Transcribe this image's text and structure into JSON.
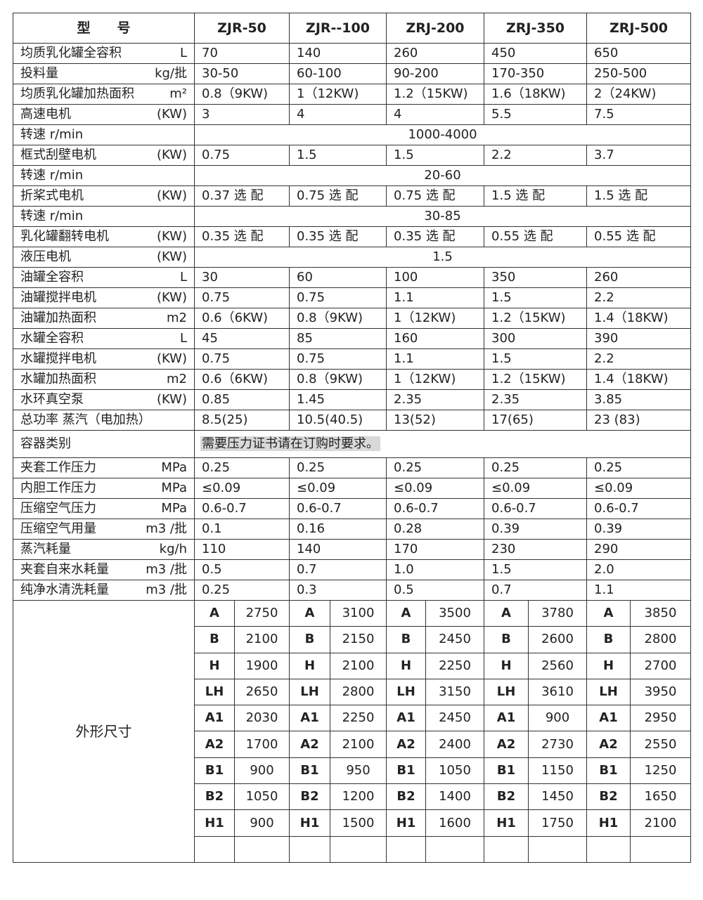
{
  "header": {
    "label": "型　　号",
    "models": [
      "ZJR-50",
      "ZJR--100",
      "ZRJ-200",
      "ZRJ-350",
      "ZRJ-500"
    ]
  },
  "rows": [
    {
      "label": "均质乳化罐全容积",
      "unit": "L",
      "values": [
        "70",
        "140",
        "260",
        "450",
        "650"
      ]
    },
    {
      "label": "投料量",
      "unit": "kg/批",
      "values": [
        "30-50",
        "60-100",
        "90-200",
        "170-350",
        "250-500"
      ]
    },
    {
      "label": "均质乳化罐加热面积",
      "unit": "m²",
      "values": [
        "0.8（9KW)",
        "1（12KW)",
        "1.2（15KW)",
        "1.6（18KW)",
        "2（24KW)"
      ]
    },
    {
      "label": "高速电机",
      "unit": "(KW)",
      "values": [
        "3",
        "4",
        "4",
        "5.5",
        "7.5"
      ]
    },
    {
      "label": "转速 r/min",
      "unit": "",
      "span": "1000-4000"
    },
    {
      "label": "框式刮壁电机",
      "unit": "(KW)",
      "values": [
        "0.75",
        "1.5",
        "1.5",
        "2.2",
        "3.7"
      ]
    },
    {
      "label": "转速 r/min",
      "unit": "",
      "span": "20-60"
    },
    {
      "label": "折桨式电机",
      "unit": "(KW)",
      "values": [
        "0.37 选 配",
        "0.75 选 配",
        "0.75 选 配",
        "1.5 选 配",
        "1.5 选 配"
      ]
    },
    {
      "label": "转速 r/min",
      "unit": "",
      "span": "30-85"
    },
    {
      "label": "乳化罐翻转电机",
      "unit": "(KW)",
      "values": [
        "0.35 选 配",
        "0.35 选 配",
        "0.35 选 配",
        "0.55 选 配",
        "0.55 选 配"
      ]
    },
    {
      "label": "液压电机",
      "unit": "(KW)",
      "span": "1.5"
    },
    {
      "label": "油罐全容积",
      "unit": "L",
      "values": [
        "30",
        "60",
        "100",
        "350",
        "260"
      ]
    },
    {
      "label": "油罐搅拌电机",
      "unit": "(KW)",
      "values": [
        "0.75",
        "0.75",
        "1.1",
        "1.5",
        "2.2"
      ]
    },
    {
      "label": "油罐加热面积",
      "unit": "m2",
      "values": [
        "0.6（6KW)",
        "0.8（9KW)",
        "1（12KW)",
        "1.2（15KW)",
        "1.4（18KW)"
      ]
    },
    {
      "label": "水罐全容积",
      "unit": "L",
      "values": [
        "45",
        "85",
        "160",
        "300",
        "390"
      ]
    },
    {
      "label": "水罐搅拌电机",
      "unit": "(KW)",
      "values": [
        "0.75",
        "0.75",
        "1.1",
        "1.5",
        "2.2"
      ]
    },
    {
      "label": "水罐加热面积",
      "unit": "m2",
      "values": [
        "0.6（6KW)",
        "0.8（9KW)",
        "1（12KW)",
        "1.2（15KW)",
        "1.4（18KW)"
      ]
    },
    {
      "label": "水环真空泵",
      "unit": "(KW)",
      "values": [
        "0.85",
        "1.45",
        "2.35",
        "2.35",
        "3.85"
      ]
    },
    {
      "label": "总功率 蒸汽（电加热）",
      "unit": "",
      "values": [
        "8.5(25)",
        "10.5(40.5)",
        "13(52)",
        "17(65)",
        "23 (83)"
      ]
    },
    {
      "label": "容器类别",
      "unit": "",
      "note": "需要压力证书请在订购时要求。"
    },
    {
      "label": "夹套工作压力",
      "unit": "MPa",
      "values": [
        "0.25",
        "0.25",
        "0.25",
        "0.25",
        "0.25"
      ]
    },
    {
      "label": "内胆工作压力",
      "unit": "MPa",
      "values": [
        "≤0.09",
        "≤0.09",
        "≤0.09",
        "≤0.09",
        "≤0.09"
      ]
    },
    {
      "label": "压缩空气压力",
      "unit": "MPa",
      "values": [
        "0.6-0.7",
        "0.6-0.7",
        "0.6-0.7",
        "0.6-0.7",
        "0.6-0.7"
      ]
    },
    {
      "label": "压缩空气用量",
      "unit": "m3 /批",
      "values": [
        "0.1",
        "0.16",
        "0.28",
        "0.39",
        "0.39"
      ]
    },
    {
      "label": "蒸汽耗量",
      "unit": "kg/h",
      "values": [
        "110",
        "140",
        "170",
        "230",
        "290"
      ]
    },
    {
      "label": "夹套自来水耗量",
      "unit": "m3 /批",
      "values": [
        "0.5",
        "0.7",
        "1.0",
        "1.5",
        "2.0"
      ]
    },
    {
      "label": "纯净水清洗耗量",
      "unit": "m3 /批",
      "values": [
        "0.25",
        "0.3",
        "0.5",
        "0.7",
        "1.1"
      ]
    }
  ],
  "dimensions": {
    "label": "外形尺寸",
    "rows": [
      {
        "key": "A",
        "values": [
          "2750",
          "3100",
          "3500",
          "3780",
          "3850"
        ]
      },
      {
        "key": "B",
        "values": [
          "2100",
          "2150",
          "2450",
          "2600",
          "2800"
        ]
      },
      {
        "key": "H",
        "values": [
          "1900",
          "2100",
          "2250",
          "2560",
          "2700"
        ]
      },
      {
        "key": "LH",
        "values": [
          "2650",
          "2800",
          "3150",
          "3610",
          "3950"
        ]
      },
      {
        "key": "A1",
        "values": [
          "2030",
          "2250",
          "2450",
          "900",
          "2950"
        ]
      },
      {
        "key": "A2",
        "values": [
          "1700",
          "2100",
          "2400",
          "2730",
          "2550"
        ]
      },
      {
        "key": "B1",
        "values": [
          "900",
          "950",
          "1050",
          "1150",
          "1250"
        ]
      },
      {
        "key": "B2",
        "values": [
          "1050",
          "1200",
          "1400",
          "1450",
          "1650"
        ]
      },
      {
        "key": "H1",
        "values": [
          "900",
          "1500",
          "1600",
          "1750",
          "2100"
        ]
      }
    ]
  }
}
